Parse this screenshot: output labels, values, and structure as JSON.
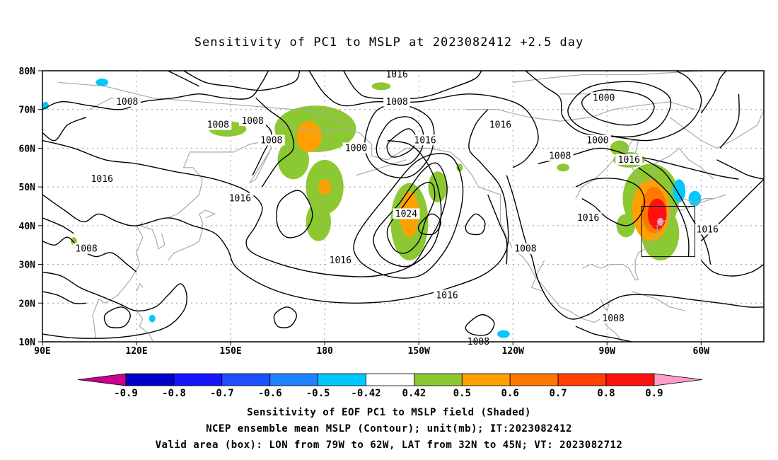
{
  "title": "Sensitivity of PC1 to MSLP at 2023082412 +2.5 day",
  "lat_labels": [
    "80N",
    "70N",
    "60N",
    "50N",
    "40N",
    "30N",
    "20N",
    "10N"
  ],
  "lon_labels": [
    "90E",
    "120E",
    "150E",
    "180",
    "150W",
    "120W",
    "90W",
    "60W"
  ],
  "isobar_labels": [
    {
      "text": "1016",
      "lon": -157,
      "lat": 79
    },
    {
      "text": "1008",
      "lon": 117,
      "lat": 72
    },
    {
      "text": "1008",
      "lon": 146,
      "lat": 66
    },
    {
      "text": "1008",
      "lon": 157,
      "lat": 67
    },
    {
      "text": "1008",
      "lon": 163,
      "lat": 62
    },
    {
      "text": "1008",
      "lon": -157,
      "lat": 72
    },
    {
      "text": "1000",
      "lon": -170,
      "lat": 60
    },
    {
      "text": "1016",
      "lon": -148,
      "lat": 62
    },
    {
      "text": "1016",
      "lon": -124,
      "lat": 66
    },
    {
      "text": "1000",
      "lon": -91,
      "lat": 73
    },
    {
      "text": "1000",
      "lon": -93,
      "lat": 62
    },
    {
      "text": "1008",
      "lon": -105,
      "lat": 58
    },
    {
      "text": "1016",
      "lon": -83,
      "lat": 57
    },
    {
      "text": "1016",
      "lon": 109,
      "lat": 52
    },
    {
      "text": "1016",
      "lon": 153,
      "lat": 47
    },
    {
      "text": "1024",
      "lon": -154,
      "lat": 43
    },
    {
      "text": "1016",
      "lon": -96,
      "lat": 42
    },
    {
      "text": "1016",
      "lon": -58,
      "lat": 39
    },
    {
      "text": "1008",
      "lon": 104,
      "lat": 34
    },
    {
      "text": "1008",
      "lon": -116,
      "lat": 34
    },
    {
      "text": "1016",
      "lon": -175,
      "lat": 31
    },
    {
      "text": "1016",
      "lon": -141,
      "lat": 22
    },
    {
      "text": "1008",
      "lon": -88,
      "lat": 16
    },
    {
      "text": "1008",
      "lon": -131,
      "lat": 10
    }
  ],
  "valid_box": {
    "lon_from": -79,
    "lon_to": -62,
    "lat_from": 32,
    "lat_to": 45
  },
  "colorbar": {
    "colors": [
      "#c8008c",
      "#0000c8",
      "#1414ff",
      "#1e50ff",
      "#1e82ff",
      "#00c8ff",
      "#ffffff",
      "#8cc832",
      "#ffa000",
      "#ff7800",
      "#ff4000",
      "#ff1010",
      "#ff9ec8"
    ],
    "labels": [
      "-0.9",
      "-0.8",
      "-0.7",
      "-0.6",
      "-0.5",
      "-0.42",
      "0.42",
      "0.5",
      "0.6",
      "0.7",
      "0.8",
      "0.9"
    ]
  },
  "captions": [
    "Sensitivity of EOF PC1 to MSLP field (Shaded)",
    "NCEP ensemble mean MSLP (Contour); unit(mb); IT:2023082412",
    "Valid area (box): LON from 79W to 62W, LAT from 32N to 45N; VT: 2023082712"
  ],
  "shading": [
    {
      "level": 0.5,
      "blobs": [
        [
          177,
          65,
          13,
          6
        ],
        [
          170,
          57,
          5,
          5
        ],
        [
          180,
          50,
          6,
          7
        ],
        [
          178,
          41,
          4,
          5
        ],
        [
          -153,
          41,
          6,
          10
        ],
        [
          -144,
          50,
          3,
          4
        ],
        [
          -83,
          57,
          5,
          2
        ],
        [
          -76,
          47,
          9,
          9
        ],
        [
          -73,
          38,
          6,
          7
        ],
        [
          -84,
          40,
          3,
          3
        ],
        [
          149,
          65,
          6,
          2
        ],
        [
          -162,
          76,
          3,
          1
        ],
        [
          100,
          36,
          1,
          1
        ],
        [
          -104,
          55,
          2,
          1
        ],
        [
          -86,
          60,
          3,
          2
        ],
        [
          -137,
          55,
          1,
          1
        ]
      ]
    },
    {
      "level": 0.6,
      "blobs": [
        [
          175,
          63,
          4,
          4
        ],
        [
          -153,
          43,
          3,
          6
        ],
        [
          -76,
          44,
          6,
          8
        ],
        [
          -82,
          57,
          3,
          1
        ],
        [
          180,
          50,
          2,
          2
        ],
        [
          147,
          66,
          1,
          1
        ]
      ]
    },
    {
      "level": 0.7,
      "blobs": [
        [
          -75,
          44,
          4,
          6
        ]
      ]
    },
    {
      "level": 0.8,
      "blobs": [
        [
          -74,
          43,
          3,
          4
        ]
      ]
    },
    {
      "level": 0.9,
      "blobs": [
        [
          -73,
          41,
          1,
          1
        ]
      ]
    },
    {
      "level": -0.5,
      "blobs": [
        [
          -67,
          49,
          2,
          3
        ],
        [
          -62,
          47,
          2,
          2
        ],
        [
          125,
          16,
          1,
          1
        ],
        [
          -123,
          12,
          2,
          1
        ],
        [
          109,
          77,
          2,
          1
        ],
        [
          91,
          71,
          1,
          1
        ]
      ]
    }
  ]
}
